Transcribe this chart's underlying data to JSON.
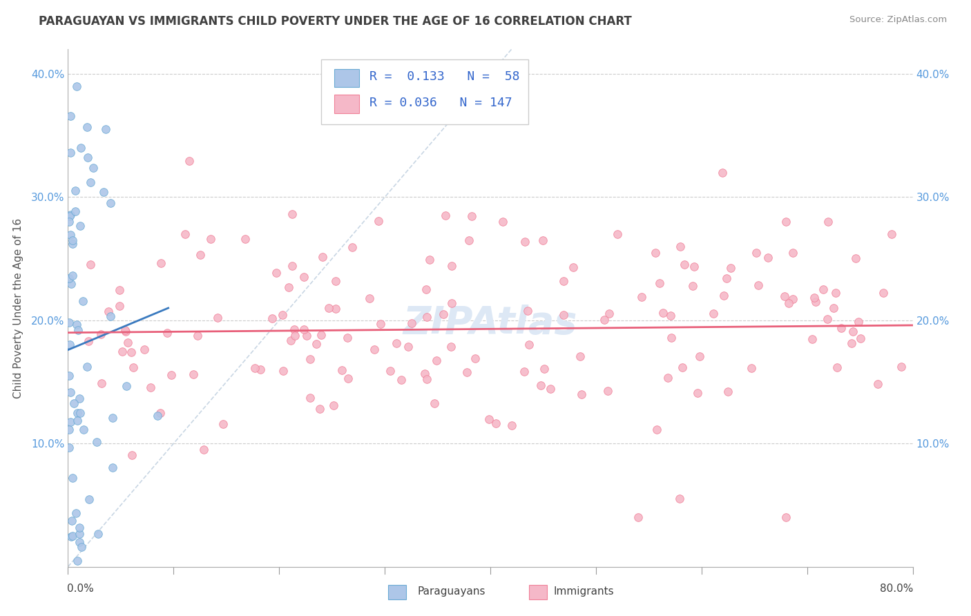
{
  "title": "PARAGUAYAN VS IMMIGRANTS CHILD POVERTY UNDER THE AGE OF 16 CORRELATION CHART",
  "source": "Source: ZipAtlas.com",
  "ylabel": "Child Poverty Under the Age of 16",
  "xlim": [
    0.0,
    0.8
  ],
  "ylim": [
    0.0,
    0.42
  ],
  "blue_R": 0.133,
  "blue_N": 58,
  "pink_R": 0.036,
  "pink_N": 147,
  "blue_color": "#adc6e8",
  "pink_color": "#f5b8c8",
  "blue_edge_color": "#6aaad4",
  "pink_edge_color": "#f08098",
  "blue_line_color": "#3a7abf",
  "pink_line_color": "#e8607a",
  "title_color": "#404040",
  "source_color": "#888888",
  "ytick_color": "#5599dd",
  "grid_color": "#cccccc",
  "diag_line_color": "#bbccdd",
  "watermark_color": "#dde8f5"
}
